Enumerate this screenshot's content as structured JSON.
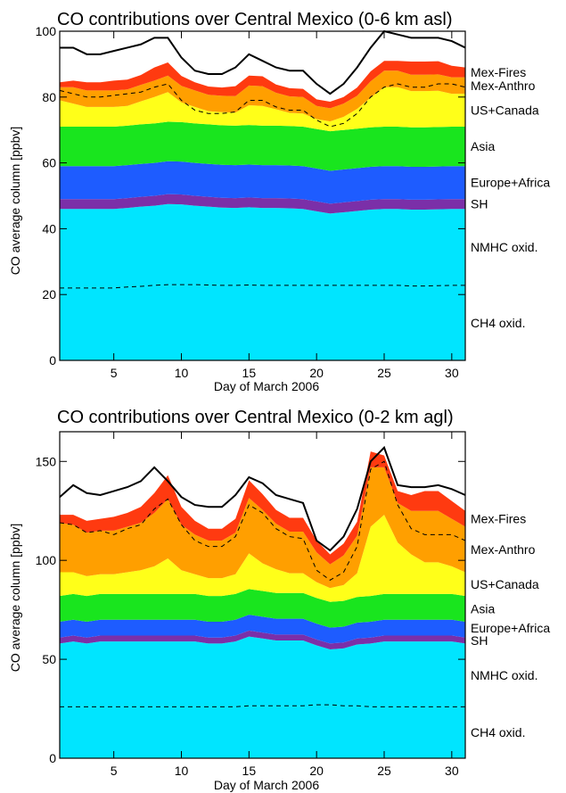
{
  "chart_data": [
    {
      "type": "area",
      "title": "CO contributions over Central Mexico (0-6 km asl)",
      "xlabel": "Day of March 2006",
      "ylabel": "CO average column [ppbv]",
      "xlim": [
        1,
        31
      ],
      "ylim": [
        0,
        100
      ],
      "xticks": [
        5,
        10,
        15,
        20,
        25,
        30
      ],
      "yticks": [
        0,
        20,
        40,
        60,
        80,
        100
      ],
      "stacked": true,
      "grid": false,
      "legend": "labels-right",
      "x": [
        1,
        2,
        3,
        4,
        5,
        6,
        7,
        8,
        9,
        10,
        11,
        12,
        13,
        14,
        15,
        16,
        17,
        18,
        19,
        20,
        21,
        22,
        23,
        24,
        25,
        26,
        27,
        28,
        29,
        30,
        31
      ],
      "layers": [
        {
          "name": "CH4 oxid.",
          "color": "#00e5ff",
          "values": [
            22,
            22,
            22,
            22,
            22,
            22.3,
            22.5,
            22.8,
            23,
            23,
            23,
            22.9,
            22.8,
            22.8,
            22.9,
            22.8,
            22.8,
            22.8,
            22.8,
            22.8,
            22.8,
            22.8,
            22.8,
            22.8,
            22.8,
            22.8,
            22.6,
            22.6,
            22.7,
            22.8,
            22.8
          ]
        },
        {
          "name": "NMHC oxid.",
          "color": "#00e5ff",
          "values": [
            24,
            24,
            24,
            24,
            24,
            24,
            24.2,
            24.2,
            24.5,
            24.4,
            24,
            23.8,
            23.6,
            23.5,
            23.6,
            23.5,
            23.5,
            23.4,
            23.2,
            22.5,
            21.8,
            22.2,
            22.6,
            23,
            23.2,
            23.2,
            23.2,
            23.2,
            23.2,
            23.2,
            23.2
          ]
        },
        {
          "name": "SH",
          "color": "#7b2fa8",
          "values": [
            3,
            3,
            3,
            3,
            3,
            3,
            3,
            3,
            3,
            3,
            3,
            3,
            3,
            3,
            3,
            3,
            3,
            3,
            3,
            3,
            3,
            3,
            3,
            3,
            3,
            3,
            3,
            3,
            3,
            3,
            3
          ]
        },
        {
          "name": "Europe+Africa",
          "color": "#1e5cff",
          "values": [
            10,
            10,
            10,
            10,
            10,
            10,
            10,
            10,
            10,
            10,
            10,
            10,
            10,
            10,
            10,
            10,
            10,
            10,
            10,
            10,
            10,
            10,
            10,
            10,
            10,
            10,
            10,
            10,
            10,
            10,
            10
          ]
        },
        {
          "name": "Asia",
          "color": "#19e51e",
          "values": [
            12,
            12,
            12,
            12,
            12,
            12,
            12,
            12,
            12,
            12,
            12,
            12,
            12,
            12,
            12,
            12,
            12,
            12,
            12,
            12,
            12,
            12,
            12,
            12,
            12,
            12,
            12,
            12,
            12,
            12,
            12
          ]
        },
        {
          "name": "US+Canada",
          "color": "#ffff19",
          "values": [
            8,
            7,
            6,
            6,
            6,
            6,
            7,
            8,
            9,
            6,
            5,
            4,
            4,
            4,
            6,
            6,
            5,
            4,
            4,
            3,
            3,
            4,
            6,
            9,
            12,
            12,
            11,
            11,
            11,
            10,
            10
          ]
        },
        {
          "name": "Mex-Anthro",
          "color": "#ff9f00",
          "values": [
            4,
            5,
            5,
            5,
            5,
            5,
            5,
            5,
            5,
            5,
            5,
            5,
            5,
            5,
            6,
            6,
            5,
            5,
            5,
            4,
            4,
            4,
            4,
            5,
            5,
            5,
            5,
            5,
            5,
            5,
            5
          ]
        },
        {
          "name": "Mex-Fires",
          "color": "#ff3a10",
          "values": [
            1.5,
            2,
            2.5,
            2.5,
            3,
            3,
            3,
            4,
            4,
            3,
            2.5,
            2.5,
            2.5,
            3,
            3,
            3,
            2.5,
            2.5,
            2.5,
            2,
            2,
            2,
            2.5,
            3,
            3,
            3,
            4,
            4,
            4,
            3.5,
            3
          ]
        }
      ],
      "anthro_dashed_line": [
        82,
        81,
        80,
        80,
        80.5,
        81,
        81.5,
        83,
        84,
        79,
        76,
        75,
        75,
        75.5,
        79,
        79,
        77,
        76,
        76,
        73,
        71,
        72,
        75,
        80,
        83,
        84,
        83,
        83,
        84,
        84,
        83
      ],
      "nmhc_dashed_line": [
        22,
        22,
        22,
        22,
        22,
        22.3,
        22.5,
        22.8,
        23,
        23,
        23,
        22.9,
        22.8,
        22.8,
        22.9,
        22.8,
        22.8,
        22.8,
        22.8,
        22.8,
        22.8,
        22.8,
        22.8,
        22.8,
        22.8,
        22.8,
        22.6,
        22.6,
        22.7,
        22.8,
        22.8
      ],
      "total_line": [
        95,
        95,
        93,
        93,
        94,
        95,
        96,
        98,
        98,
        92,
        88,
        87,
        87,
        89,
        93,
        91,
        89,
        88,
        88,
        84,
        81,
        84,
        89,
        95,
        100,
        99,
        98,
        98,
        98,
        97,
        95
      ],
      "total_line_color": "#000000"
    },
    {
      "type": "area",
      "title": "CO contributions over Central Mexico (0-2 km agl)",
      "xlabel": "Day of March 2006",
      "ylabel": "CO average column [ppbv]",
      "xlim": [
        1,
        31
      ],
      "ylim": [
        0,
        165
      ],
      "xticks": [
        5,
        10,
        15,
        20,
        25,
        30
      ],
      "yticks": [
        0,
        50,
        100,
        150
      ],
      "stacked": true,
      "grid": false,
      "legend": "labels-right",
      "x": [
        1,
        2,
        3,
        4,
        5,
        6,
        7,
        8,
        9,
        10,
        11,
        12,
        13,
        14,
        15,
        16,
        17,
        18,
        19,
        20,
        21,
        22,
        23,
        24,
        25,
        26,
        27,
        28,
        29,
        30,
        31
      ],
      "layers": [
        {
          "name": "CH4 oxid.",
          "color": "#00e5ff",
          "values": [
            26,
            26,
            26,
            26,
            26,
            26,
            26,
            26,
            26,
            26,
            26,
            26,
            26,
            26,
            26.5,
            26.5,
            26.5,
            26.5,
            26.5,
            27,
            27,
            26.5,
            26.5,
            26,
            26,
            26,
            26,
            26,
            26,
            26,
            26
          ]
        },
        {
          "name": "NMHC oxid.",
          "color": "#00e5ff",
          "values": [
            32,
            33,
            32,
            33,
            33,
            33,
            33,
            33,
            33,
            33,
            33,
            32,
            32,
            33,
            35,
            34,
            33,
            33,
            33,
            30,
            28,
            29,
            31,
            32,
            33,
            33,
            33,
            33,
            33,
            33,
            32
          ]
        },
        {
          "name": "SH",
          "color": "#7b2fa8",
          "values": [
            3,
            3,
            3,
            3,
            3,
            3,
            3,
            3,
            3,
            3,
            3,
            3,
            3,
            3,
            3,
            3,
            3,
            3,
            3,
            3,
            3,
            3,
            3,
            3,
            3,
            3,
            3,
            3,
            3,
            3,
            3
          ]
        },
        {
          "name": "Europe+Africa",
          "color": "#1e5cff",
          "values": [
            8,
            8,
            8,
            8,
            8,
            8,
            8,
            8,
            8,
            8,
            8,
            8,
            8,
            8,
            8,
            8,
            8,
            8,
            8,
            8,
            8,
            8,
            8,
            8,
            8,
            8,
            8,
            8,
            8,
            8,
            8
          ]
        },
        {
          "name": "Asia",
          "color": "#19e51e",
          "values": [
            13,
            13,
            13,
            13,
            13,
            13,
            13,
            13,
            13,
            13,
            13,
            13,
            13,
            13,
            13,
            13,
            13,
            13,
            13,
            13,
            13,
            13,
            13,
            13,
            13,
            13,
            13,
            13,
            13,
            13,
            13
          ]
        },
        {
          "name": "US+Canada",
          "color": "#ffff19",
          "values": [
            12,
            11,
            10,
            10,
            10,
            11,
            12,
            14,
            18,
            12,
            10,
            9,
            9,
            10,
            18,
            14,
            12,
            10,
            10,
            8,
            7,
            8,
            12,
            35,
            40,
            26,
            20,
            16,
            16,
            14,
            12
          ]
        },
        {
          "name": "Mex-Anthro",
          "color": "#ff9f00",
          "values": [
            25,
            24,
            22,
            22,
            22,
            23,
            24,
            27,
            30,
            23,
            20,
            19,
            19,
            21,
            28,
            27,
            23,
            21,
            21,
            15,
            12,
            15,
            19,
            30,
            24,
            20,
            22,
            26,
            26,
            24,
            23
          ]
        },
        {
          "name": "Mex-Fires",
          "color": "#ff3a10",
          "values": [
            4,
            5,
            6,
            6,
            7,
            7,
            8,
            10,
            12,
            9,
            7,
            6,
            6,
            7,
            9,
            8,
            7,
            7,
            7,
            6,
            5,
            6,
            7,
            8,
            6,
            6,
            8,
            10,
            10,
            9,
            8
          ]
        }
      ],
      "anthro_dashed_line": [
        119,
        118,
        114,
        115,
        113,
        116,
        118,
        126,
        131,
        118,
        110,
        107,
        107,
        112,
        128,
        124,
        116,
        112,
        111,
        95,
        90,
        94,
        107,
        146,
        150,
        128,
        116,
        113,
        113,
        113,
        110
      ],
      "nmhc_dashed_line": [
        26,
        26,
        26,
        26,
        26,
        26,
        26,
        26,
        26,
        26,
        26,
        26,
        26,
        26,
        26.5,
        26.5,
        26.5,
        26.5,
        26.5,
        27,
        27,
        26.5,
        26.5,
        26,
        26,
        26,
        26,
        26,
        26,
        26,
        26
      ],
      "total_line": [
        132,
        138,
        134,
        133,
        135,
        137,
        140,
        147,
        140,
        132,
        128,
        127,
        127,
        133,
        142,
        139,
        133,
        131,
        129,
        110,
        105,
        112,
        126,
        150,
        157,
        138,
        137,
        137,
        138,
        136,
        133
      ],
      "total_line_color": "#000000"
    }
  ]
}
